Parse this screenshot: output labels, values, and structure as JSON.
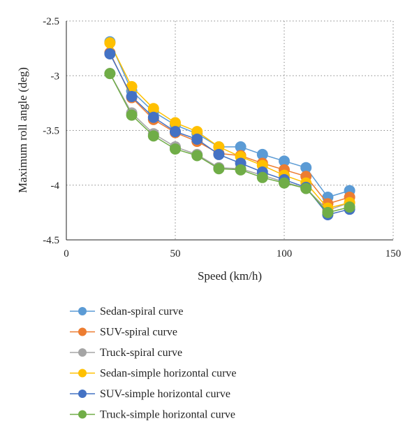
{
  "chart_data": {
    "type": "line",
    "xlabel": "Speed (km/h)",
    "ylabel": "Maximum roll angle (deg)",
    "xlim": [
      0,
      150
    ],
    "ylim": [
      -4.5,
      -2.5
    ],
    "x_ticks": [
      "0",
      "50",
      "100",
      "150"
    ],
    "y_ticks": [
      "-2.5",
      "-3",
      "-3.5",
      "-4",
      "-4.5"
    ],
    "grid": "dotted",
    "legend_position": "bottom",
    "x": [
      20,
      30,
      40,
      50,
      60,
      70,
      80,
      90,
      100,
      110,
      120,
      130
    ],
    "series": [
      {
        "name": "Sedan-spiral curve",
        "color": "#5B9BD5",
        "values": [
          -2.69,
          -3.14,
          -3.33,
          -3.45,
          -3.53,
          -3.65,
          -3.65,
          -3.72,
          -3.78,
          -3.84,
          -4.11,
          -4.05
        ]
      },
      {
        "name": "SUV-spiral curve",
        "color": "#ED7D31",
        "values": [
          -2.79,
          -3.2,
          -3.4,
          -3.52,
          -3.6,
          -3.71,
          -3.73,
          -3.8,
          -3.86,
          -3.92,
          -4.17,
          -4.11
        ]
      },
      {
        "name": "Truck-spiral curve",
        "color": "#A5A5A5",
        "values": [
          -2.98,
          -3.34,
          -3.53,
          -3.65,
          -3.72,
          -3.84,
          -3.85,
          -3.91,
          -3.97,
          -4.03,
          -4.23,
          -4.16
        ]
      },
      {
        "name": "Sedan-simple horizontal curve",
        "color": "#FFC000",
        "values": [
          -2.7,
          -3.1,
          -3.3,
          -3.43,
          -3.51,
          -3.65,
          -3.74,
          -3.82,
          -3.91,
          -3.98,
          -4.21,
          -4.16
        ]
      },
      {
        "name": "SUV-simple horizontal curve",
        "color": "#4472C4",
        "values": [
          -2.8,
          -3.19,
          -3.38,
          -3.51,
          -3.58,
          -3.72,
          -3.8,
          -3.88,
          -3.95,
          -4.02,
          -4.27,
          -4.22
        ]
      },
      {
        "name": "Truck-simple horizontal curve",
        "color": "#70AD47",
        "values": [
          -2.98,
          -3.36,
          -3.55,
          -3.67,
          -3.73,
          -3.85,
          -3.86,
          -3.93,
          -3.98,
          -4.03,
          -4.25,
          -4.2
        ]
      }
    ]
  }
}
